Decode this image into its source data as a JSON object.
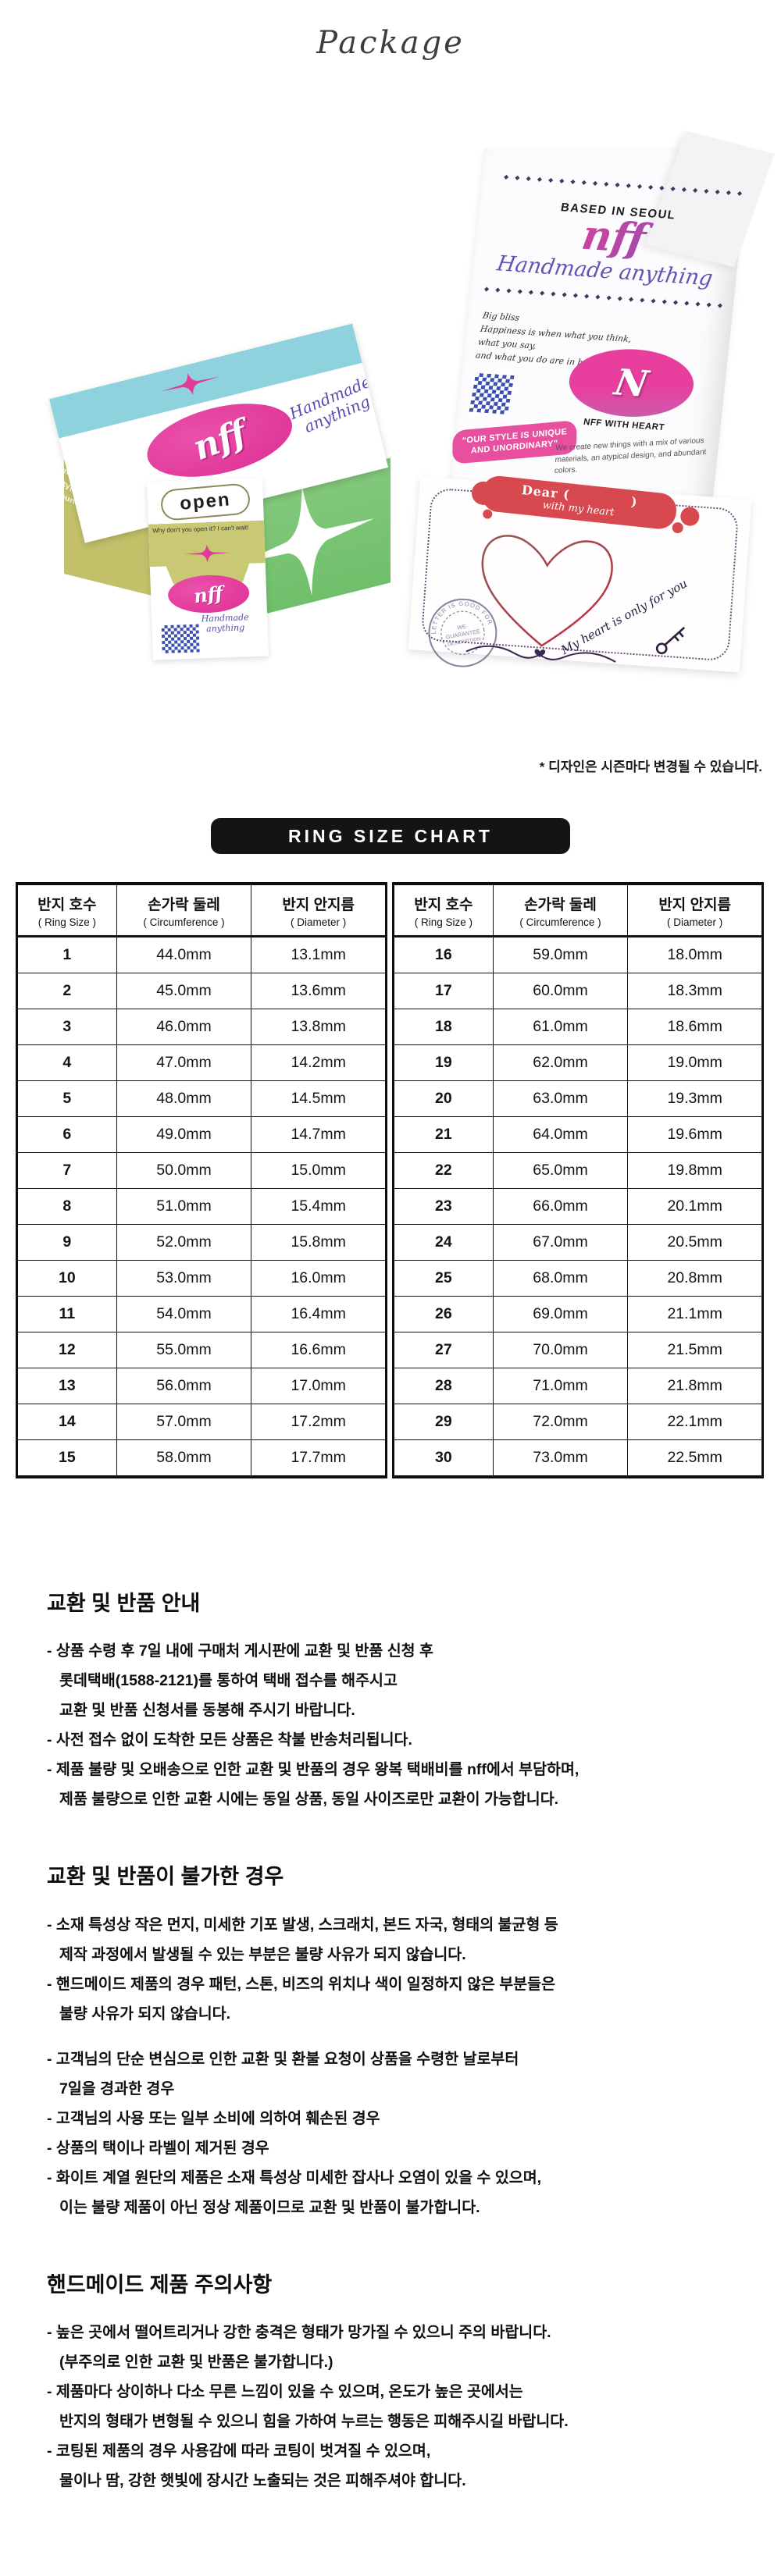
{
  "header": {
    "title": "Package"
  },
  "collage": {
    "bag": {
      "chain": "◆ ◆ ◆ ◆ ◆ ◆ ◆ ◆ ◆ ◆ ◆ ◆ ◆ ◆ ◆ ◆ ◆ ◆ ◆ ◆ ◆ ◆ ◆ ◆ ◆ ◆",
      "based_in": "BASED IN SEOUL",
      "logo": "nff",
      "script": "Handmade anything",
      "bliss_lines": [
        "Big bliss",
        "Happiness is when what you think,",
        "what you say,",
        "and what you do are in harmony"
      ],
      "emblem_letter": "N",
      "emblem_caption": "NFF WITH HEART",
      "style_badge_line1": "“OUR STYLE IS UNIQUE",
      "style_badge_line2": "AND UNORDINARY”",
      "desc": "We create new things with a mix of various materials, an atypical design, and abundant colors."
    },
    "box": {
      "lid_logo": "nff",
      "lid_script_1": "Handmade",
      "lid_script_2": "anything",
      "side_text": "We create new things with a mix of various materials, an atypical design, and abundant colors.",
      "open_label": "open",
      "tab_caption": "Why don't you open it? I can't wait!",
      "tab_logo": "nff",
      "tab_script": "Handmade anything"
    },
    "card": {
      "banner": "Dear (            )",
      "banner_sub": "with my heart",
      "stamp_ring": "LETTER IS GOOD FOR YOU",
      "stamp_lines": [
        "WE",
        "GUARANTEE",
        "DESCRIPTION"
      ],
      "footer_script": "My heart is only for you"
    },
    "design_note": "* 디자인은 시즌마다 변경될 수 있습니다."
  },
  "size_chart": {
    "title": "RING SIZE CHART",
    "col_headers": [
      {
        "ko": "반지 호수",
        "en": "( Ring Size )"
      },
      {
        "ko": "손가락 둘레",
        "en": "( Circumference )"
      },
      {
        "ko": "반지 안지름",
        "en": "( Diameter )"
      }
    ],
    "left_rows": [
      [
        "1",
        "44.0mm",
        "13.1mm"
      ],
      [
        "2",
        "45.0mm",
        "13.6mm"
      ],
      [
        "3",
        "46.0mm",
        "13.8mm"
      ],
      [
        "4",
        "47.0mm",
        "14.2mm"
      ],
      [
        "5",
        "48.0mm",
        "14.5mm"
      ],
      [
        "6",
        "49.0mm",
        "14.7mm"
      ],
      [
        "7",
        "50.0mm",
        "15.0mm"
      ],
      [
        "8",
        "51.0mm",
        "15.4mm"
      ],
      [
        "9",
        "52.0mm",
        "15.8mm"
      ],
      [
        "10",
        "53.0mm",
        "16.0mm"
      ],
      [
        "11",
        "54.0mm",
        "16.4mm"
      ],
      [
        "12",
        "55.0mm",
        "16.6mm"
      ],
      [
        "13",
        "56.0mm",
        "17.0mm"
      ],
      [
        "14",
        "57.0mm",
        "17.2mm"
      ],
      [
        "15",
        "58.0mm",
        "17.7mm"
      ]
    ],
    "right_rows": [
      [
        "16",
        "59.0mm",
        "18.0mm"
      ],
      [
        "17",
        "60.0mm",
        "18.3mm"
      ],
      [
        "18",
        "61.0mm",
        "18.6mm"
      ],
      [
        "19",
        "62.0mm",
        "19.0mm"
      ],
      [
        "20",
        "63.0mm",
        "19.3mm"
      ],
      [
        "21",
        "64.0mm",
        "19.6mm"
      ],
      [
        "22",
        "65.0mm",
        "19.8mm"
      ],
      [
        "23",
        "66.0mm",
        "20.1mm"
      ],
      [
        "24",
        "67.0mm",
        "20.5mm"
      ],
      [
        "25",
        "68.0mm",
        "20.8mm"
      ],
      [
        "26",
        "69.0mm",
        "21.1mm"
      ],
      [
        "27",
        "70.0mm",
        "21.5mm"
      ],
      [
        "28",
        "71.0mm",
        "21.8mm"
      ],
      [
        "29",
        "72.0mm",
        "22.1mm"
      ],
      [
        "30",
        "73.0mm",
        "22.5mm"
      ]
    ]
  },
  "sections": [
    {
      "heading": "교환 및 반품 안내",
      "lines": [
        {
          "text": "- 상품 수령 후 7일 내에 구매처 게시판에 교환 및 반품 신청 후",
          "cont": false
        },
        {
          "text": "롯데택배(1588-2121)를 통하여 택배 접수를 해주시고",
          "cont": true
        },
        {
          "text": "교환 및 반품 신청서를 동봉해 주시기 바랍니다.",
          "cont": true
        },
        {
          "text": "- 사전 접수 없이 도착한 모든 상품은 착불 반송처리됩니다.",
          "cont": false
        },
        {
          "text": "- 제품 불량 및 오배송으로 인한 교환 및 반품의 경우 왕복 택배비를 nff에서 부담하며,",
          "cont": false
        },
        {
          "text": "제품 불량으로 인한 교환 시에는 동일 상품, 동일 사이즈로만 교환이 가능합니다.",
          "cont": true
        }
      ]
    },
    {
      "heading": "교환 및 반품이 불가한 경우",
      "lines": [
        {
          "text": "- 소재 특성상 작은 먼지, 미세한 기포 발생, 스크래치, 본드 자국, 형태의 불균형 등",
          "cont": false
        },
        {
          "text": "제작 과정에서 발생될 수 있는 부분은 불량 사유가 되지 않습니다.",
          "cont": true
        },
        {
          "text": "- 핸드메이드 제품의 경우 패턴, 스톤, 비즈의 위치나 색이 일정하지 않은 부분들은",
          "cont": false
        },
        {
          "text": "불량 사유가 되지 않습니다.",
          "cont": true
        },
        {
          "text": "- 고객님의 단순 변심으로 인한 교환 및 환불 요청이 상품을 수령한 날로부터",
          "cont": false,
          "gap": true
        },
        {
          "text": "7일을 경과한 경우",
          "cont": true
        },
        {
          "text": "- 고객님의 사용 또는 일부 소비에 의하여 훼손된 경우",
          "cont": false
        },
        {
          "text": "- 상품의 택이나 라벨이 제거된 경우",
          "cont": false
        },
        {
          "text": "- 화이트 계열 원단의 제품은 소재 특성상 미세한 잡사나 오염이 있을 수 있으며,",
          "cont": false
        },
        {
          "text": "이는 불량 제품이 아닌 정상 제품이므로 교환 및 반품이 불가합니다.",
          "cont": true
        }
      ]
    },
    {
      "heading": "핸드메이드 제품 주의사항",
      "lines": [
        {
          "text": "- 높은 곳에서 떨어트리거나 강한 충격은 형태가 망가질 수 있으니 주의 바랍니다.",
          "cont": false
        },
        {
          "text": "(부주의로 인한 교환 및 반품은 불가합니다.)",
          "cont": true
        },
        {
          "text": "- 제품마다 상이하나 다소 무른 느낌이 있을 수 있으며, 온도가 높은 곳에서는",
          "cont": false
        },
        {
          "text": "반지의 형태가 변형될 수 있으니 힘을 가하여 누르는 행동은 피해주시길 바랍니다.",
          "cont": true
        },
        {
          "text": "- 코팅된 제품의 경우 사용감에 따라 코팅이 벗겨질 수 있으며,",
          "cont": false
        },
        {
          "text": "물이나 땀, 강한 햇빛에 장시간 노출되는 것은 피해주셔야 합니다.",
          "cont": true
        }
      ]
    }
  ],
  "colors": {
    "magenta": "#e0389b",
    "teal": "#8ed2de",
    "green": "#7cc878",
    "olive": "#c2c169",
    "purple_script": "#5f55b4",
    "banner_red": "#d8494f",
    "qr_blue": "#3b4fae",
    "chart_pill_bg": "#141414"
  }
}
